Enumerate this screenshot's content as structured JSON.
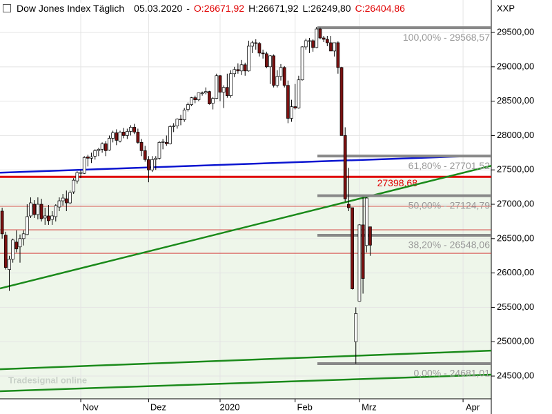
{
  "chart_data": {
    "type": "candlestick",
    "title": "Dow Jones Index Täglich",
    "date": "05.03.2020",
    "quote": [
      {
        "text": "O:26671,92",
        "color": "#e00000"
      },
      {
        "text": "H:26671,92",
        "color": "#000000"
      },
      {
        "text": "L:26249,80",
        "color": "#000000"
      },
      {
        "text": "C:26404,86",
        "color": "#e00000"
      }
    ],
    "symbol": "XXP",
    "watermark": "Tradesignal online",
    "up_color": "#ffffff",
    "down_color": "#7a1010",
    "ylim": [
      24169,
      29972
    ],
    "yticks": [
      {
        "value": 24500,
        "label": "24500,00"
      },
      {
        "value": 25000,
        "label": "25000,00"
      },
      {
        "value": 25500,
        "label": "25500,00"
      },
      {
        "value": 26000,
        "label": "26000,00"
      },
      {
        "value": 26500,
        "label": "26500,00"
      },
      {
        "value": 27000,
        "label": "27000,00"
      },
      {
        "value": 27500,
        "label": "27500,00"
      },
      {
        "value": 28000,
        "label": "28000,00"
      },
      {
        "value": 28500,
        "label": "28500,00"
      },
      {
        "value": 29000,
        "label": "29000,00"
      },
      {
        "value": 29500,
        "label": "29500,00"
      }
    ],
    "xlim": [
      -0.6,
      136.9
    ],
    "xticks": [
      {
        "value": 22,
        "label": "Nov"
      },
      {
        "value": 41,
        "label": "Dez"
      },
      {
        "value": 61,
        "label": "2020"
      },
      {
        "value": 82,
        "label": "Feb"
      },
      {
        "value": 100,
        "label": "Mrz"
      },
      {
        "value": 129,
        "label": "Apr"
      }
    ],
    "grid": true,
    "ohlc": [
      [
        26900,
        26950,
        26500,
        26570
      ],
      [
        26550,
        26600,
        26050,
        26080
      ],
      [
        26050,
        26250,
        25740,
        26200
      ],
      [
        26200,
        26500,
        26150,
        26480
      ],
      [
        26450,
        26620,
        26300,
        26350
      ],
      [
        26380,
        26560,
        26150,
        26500
      ],
      [
        26500,
        26620,
        26400,
        26570
      ],
      [
        26560,
        27000,
        26550,
        26820
      ],
      [
        26830,
        27100,
        26800,
        27020
      ],
      [
        27000,
        27060,
        26800,
        26850
      ],
      [
        26850,
        27100,
        26780,
        27000
      ],
      [
        27000,
        27080,
        26750,
        26790
      ],
      [
        26800,
        26950,
        26700,
        26830
      ],
      [
        26830,
        26990,
        26700,
        26760
      ],
      [
        26780,
        26900,
        26700,
        26830
      ],
      [
        26820,
        27000,
        26750,
        26980
      ],
      [
        26960,
        27100,
        26900,
        27050
      ],
      [
        27050,
        27150,
        26980,
        27090
      ],
      [
        27080,
        27200,
        26900,
        27020
      ],
      [
        27020,
        27200,
        27000,
        27170
      ],
      [
        27180,
        27380,
        27150,
        27350
      ],
      [
        27340,
        27480,
        27300,
        27460
      ],
      [
        27460,
        27500,
        27380,
        27460
      ],
      [
        27450,
        27700,
        27440,
        27680
      ],
      [
        27690,
        27720,
        27550,
        27670
      ],
      [
        27670,
        27750,
        27600,
        27690
      ],
      [
        27700,
        27800,
        27650,
        27780
      ],
      [
        27780,
        27820,
        27700,
        27800
      ],
      [
        27800,
        27900,
        27750,
        27880
      ],
      [
        27880,
        27920,
        27700,
        27780
      ],
      [
        27790,
        28000,
        27780,
        27960
      ],
      [
        27960,
        28070,
        27900,
        28040
      ],
      [
        28040,
        28090,
        27860,
        27930
      ],
      [
        27920,
        28070,
        27900,
        28050
      ],
      [
        28050,
        28110,
        27960,
        28000
      ],
      [
        28000,
        28100,
        27950,
        28060
      ],
      [
        28060,
        28150,
        28000,
        28120
      ],
      [
        28120,
        28170,
        28020,
        28050
      ],
      [
        28050,
        28100,
        27880,
        27900
      ],
      [
        27900,
        27950,
        27700,
        27780
      ],
      [
        27780,
        27850,
        27620,
        27650
      ],
      [
        27650,
        27700,
        27320,
        27500
      ],
      [
        27500,
        27700,
        27470,
        27650
      ],
      [
        27650,
        27700,
        27500,
        27670
      ],
      [
        27670,
        27920,
        27650,
        27900
      ],
      [
        27900,
        27950,
        27800,
        27910
      ],
      [
        27900,
        28000,
        27850,
        27880
      ],
      [
        27880,
        28150,
        27870,
        28130
      ],
      [
        28130,
        28180,
        28050,
        28140
      ],
      [
        28140,
        28250,
        28100,
        28240
      ],
      [
        28240,
        28300,
        28150,
        28230
      ],
      [
        28230,
        28400,
        28200,
        28370
      ],
      [
        28380,
        28480,
        28350,
        28450
      ],
      [
        28450,
        28560,
        28430,
        28550
      ],
      [
        28550,
        28580,
        28470,
        28520
      ],
      [
        28520,
        28620,
        28500,
        28620
      ],
      [
        28620,
        28640,
        28580,
        28620
      ],
      [
        28620,
        28700,
        28600,
        28640
      ],
      [
        28640,
        28650,
        28450,
        28460
      ],
      [
        28470,
        28560,
        28380,
        28540
      ],
      [
        28540,
        28900,
        28530,
        28870
      ],
      [
        28870,
        28880,
        28500,
        28630
      ],
      [
        28630,
        28730,
        28400,
        28700
      ],
      [
        28700,
        28900,
        28550,
        28580
      ],
      [
        28580,
        28950,
        28550,
        28900
      ],
      [
        28900,
        29000,
        28850,
        28960
      ],
      [
        28960,
        29050,
        28900,
        28940
      ],
      [
        28940,
        29100,
        28880,
        29030
      ],
      [
        29030,
        29060,
        28870,
        28940
      ],
      [
        28940,
        29380,
        28930,
        29300
      ],
      [
        29300,
        29380,
        29200,
        29350
      ],
      [
        29350,
        29400,
        29250,
        29340
      ],
      [
        29340,
        29360,
        29150,
        29200
      ],
      [
        29200,
        29250,
        29120,
        29190
      ],
      [
        29190,
        29220,
        28980,
        29000
      ],
      [
        29000,
        29170,
        28750,
        29160
      ],
      [
        29160,
        29180,
        28700,
        28730
      ],
      [
        28730,
        28950,
        28700,
        28860
      ],
      [
        28860,
        29040,
        28800,
        28990
      ],
      [
        28990,
        29010,
        28700,
        28730
      ],
      [
        28730,
        28800,
        28180,
        28250
      ],
      [
        28250,
        28520,
        28200,
        28420
      ],
      [
        28420,
        28750,
        28380,
        28400
      ],
      [
        28400,
        28870,
        28390,
        28810
      ],
      [
        28810,
        29300,
        28800,
        29290
      ],
      [
        29290,
        29410,
        29250,
        29380
      ],
      [
        29380,
        29420,
        29200,
        29380
      ],
      [
        29380,
        29400,
        29220,
        29280
      ],
      [
        29280,
        29580,
        29270,
        29550
      ],
      [
        29550,
        29570,
        29400,
        29420
      ],
      [
        29420,
        29450,
        29360,
        29400
      ],
      [
        29400,
        29450,
        29300,
        29350
      ],
      [
        29350,
        29450,
        29230,
        29230
      ],
      [
        29230,
        29350,
        29150,
        29350
      ],
      [
        29350,
        29370,
        28900,
        28990
      ],
      [
        28990,
        29000,
        28000,
        28000
      ],
      [
        28000,
        28120,
        27040,
        27080
      ],
      [
        27000,
        27530,
        26900,
        26950
      ],
      [
        26950,
        26950,
        25760,
        25770
      ],
      [
        25000,
        25500,
        24681,
        25410
      ],
      [
        25590,
        26710,
        25590,
        26700
      ],
      [
        26700,
        27100,
        25700,
        25920
      ],
      [
        26400,
        27100,
        26300,
        27090
      ],
      [
        26671.92,
        26671.92,
        26249.8,
        26404.86
      ]
    ],
    "red_level": {
      "value": 27398.68,
      "label": "27398,68",
      "color": "#e00000"
    },
    "thin_levels": [
      26970,
      26628,
      26287
    ],
    "fib_levels": [
      {
        "value": 29568.57,
        "label": "100,00% - 29568,57"
      },
      {
        "value": 27701.52,
        "label": "61,80% - 27701,52"
      },
      {
        "value": 27124.79,
        "label": "50,00% - 27124,79"
      },
      {
        "value": 26548.06,
        "label": "38,20% - 26548,06"
      },
      {
        "value": 24681.01,
        "label": "0,00% - 24681,01"
      }
    ],
    "trendlines": [
      {
        "color": "#0a14d0",
        "x": [
          -0.6,
          130.7
        ],
        "y": [
          27460,
          27700
        ]
      },
      {
        "color": "#1a8a1a",
        "x": [
          -0.6,
          136.9
        ],
        "y": [
          25775,
          27560
        ]
      },
      {
        "color": "#1a8a1a",
        "x": [
          -0.6,
          136.9
        ],
        "y": [
          24600,
          24870
        ]
      },
      {
        "color": "#1a8a1a",
        "x": [
          -0.6,
          136.9
        ],
        "y": [
          24280,
          24520
        ]
      }
    ]
  }
}
